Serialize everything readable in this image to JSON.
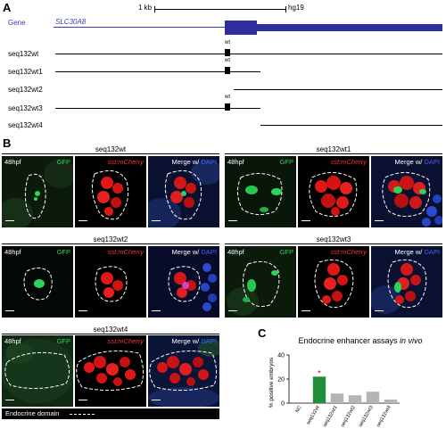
{
  "panel_a": {
    "letter": "A",
    "scale_label": "1 kb",
    "assembly_label": "hg19",
    "gene_label": "Gene",
    "gene_name": "SLC30A8",
    "constructs": [
      {
        "name": "seq132wt",
        "wt_mark": "wt"
      },
      {
        "name": "seq132wt1",
        "wt_mark": "wt"
      },
      {
        "name": "seq132wt2",
        "wt_mark": ""
      },
      {
        "name": "seq132wt3",
        "wt_mark": "wt"
      },
      {
        "name": "seq132wt4",
        "wt_mark": ""
      }
    ]
  },
  "panel_b": {
    "letter": "B",
    "panels": [
      {
        "title": "seq132wt",
        "stage": "48hpf",
        "ch1": "GFP",
        "ch2": "sst:mCherry",
        "merge": "Merge w/",
        "dapi": "DAPI"
      },
      {
        "title": "seq132wt1",
        "stage": "48hpf",
        "ch1": "GFP",
        "ch2": "sst:mCherry",
        "merge": "Merge w/",
        "dapi": "DAPI"
      },
      {
        "title": "seq132wt2",
        "stage": "48hpf",
        "ch1": "GFP",
        "ch2": "sst:mCherry",
        "merge": "Merge w/",
        "dapi": "DAPI"
      },
      {
        "title": "seq132wt3",
        "stage": "48hpf",
        "ch1": "GFP",
        "ch2": "sst:mCherry",
        "merge": "Merge w/",
        "dapi": "DAPI"
      },
      {
        "title": "seq132wt4",
        "stage": "48hpf",
        "ch1": "GFP",
        "ch2": "sst:mCherry",
        "merge": "Merge w/",
        "dapi": "DAPI"
      }
    ],
    "legend": "Endocrine domain"
  },
  "panel_c": {
    "letter": "C",
    "title": "Endocrine enhancer assays",
    "title_italic": "in vivo",
    "significance_mark": "*",
    "colors": {
      "highlight": "#1f8f3a",
      "other": "#b4b4b4"
    },
    "chart_data": {
      "type": "bar",
      "title": "Endocrine enhancer assays in vivo",
      "xlabel": "",
      "ylabel": "% positive embryos",
      "categories": [
        "NC",
        "seq132wt",
        "seq132wt1",
        "seq132wt2",
        "seq132wt3",
        "seq132wt4"
      ],
      "values": [
        0,
        22,
        8,
        6.5,
        9.5,
        3
      ],
      "ylim": [
        0,
        40
      ],
      "yticks": [
        "0",
        "20",
        "40"
      ],
      "highlight_index": 1,
      "significant_index": 1,
      "grid": false
    }
  }
}
